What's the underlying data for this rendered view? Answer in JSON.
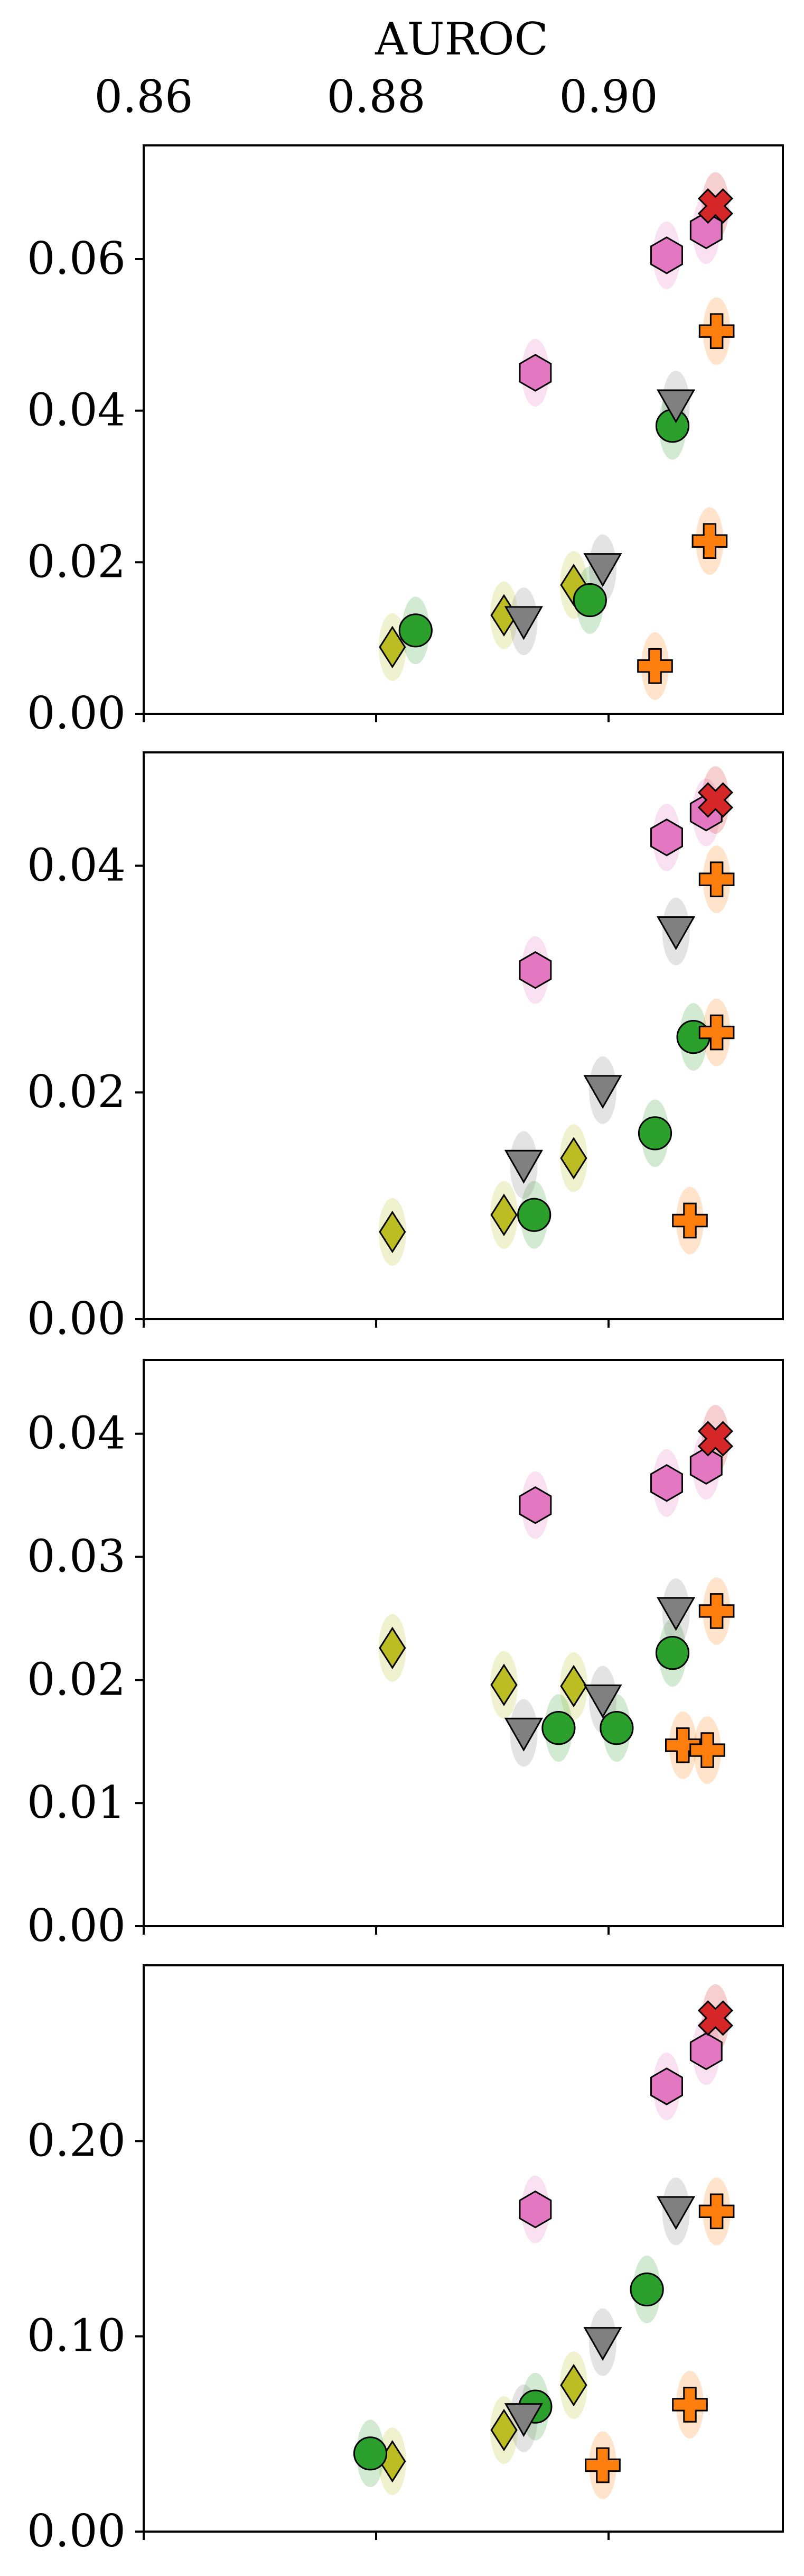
{
  "figure": {
    "top_axis_title": "AUROC",
    "x_ticks": [
      {
        "value": 0.86,
        "label": "0.86"
      },
      {
        "value": 0.88,
        "label": "0.88"
      },
      {
        "value": 0.9,
        "label": "0.90"
      }
    ]
  },
  "colors": {
    "diamond": "#bcbd22",
    "circle": "#2ca02c",
    "triangle": "#808080",
    "hexagon": "#e377c2",
    "plus": "#ff7f0e",
    "cross": "#d62728"
  },
  "chart_data": [
    {
      "type": "scatter",
      "xlim": [
        0.86,
        0.915
      ],
      "ylim": [
        0,
        0.075
      ],
      "y_ticks": [
        {
          "value": 0.0,
          "label": "0.00"
        },
        {
          "value": 0.02,
          "label": "0.02"
        },
        {
          "value": 0.04,
          "label": "0.04"
        },
        {
          "value": 0.06,
          "label": "0.06"
        }
      ],
      "series": [
        {
          "marker": "diamond",
          "points": [
            {
              "x": 0.8814,
              "y": 0.0088
            },
            {
              "x": 0.891,
              "y": 0.013
            },
            {
              "x": 0.897,
              "y": 0.017
            }
          ]
        },
        {
          "marker": "circle",
          "points": [
            {
              "x": 0.8834,
              "y": 0.011
            },
            {
              "x": 0.8984,
              "y": 0.015
            },
            {
              "x": 0.9055,
              "y": 0.038
            }
          ]
        },
        {
          "marker": "triangle",
          "points": [
            {
              "x": 0.8927,
              "y": 0.0122
            },
            {
              "x": 0.8995,
              "y": 0.0192
            },
            {
              "x": 0.9058,
              "y": 0.0408
            }
          ]
        },
        {
          "marker": "hexagon",
          "points": [
            {
              "x": 0.8937,
              "y": 0.045
            },
            {
              "x": 0.905,
              "y": 0.0605
            },
            {
              "x": 0.9084,
              "y": 0.0638
            }
          ]
        },
        {
          "marker": "plus",
          "points": [
            {
              "x": 0.904,
              "y": 0.0063
            },
            {
              "x": 0.9087,
              "y": 0.0228
            },
            {
              "x": 0.9093,
              "y": 0.0505
            }
          ]
        },
        {
          "marker": "cross",
          "points": [
            {
              "x": 0.9092,
              "y": 0.067
            }
          ]
        }
      ]
    },
    {
      "type": "scatter",
      "xlim": [
        0.86,
        0.915
      ],
      "ylim": [
        0,
        0.05
      ],
      "y_ticks": [
        {
          "value": 0.0,
          "label": "0.00"
        },
        {
          "value": 0.02,
          "label": "0.02"
        },
        {
          "value": 0.04,
          "label": "0.04"
        }
      ],
      "series": [
        {
          "marker": "diamond",
          "points": [
            {
              "x": 0.8814,
              "y": 0.0077
            },
            {
              "x": 0.891,
              "y": 0.0092
            },
            {
              "x": 0.897,
              "y": 0.0142
            }
          ]
        },
        {
          "marker": "circle",
          "points": [
            {
              "x": 0.8936,
              "y": 0.0092
            },
            {
              "x": 0.904,
              "y": 0.0164
            },
            {
              "x": 0.9073,
              "y": 0.0249
            }
          ]
        },
        {
          "marker": "triangle",
          "points": [
            {
              "x": 0.8927,
              "y": 0.0136
            },
            {
              "x": 0.8995,
              "y": 0.0202
            },
            {
              "x": 0.9058,
              "y": 0.0342
            }
          ]
        },
        {
          "marker": "hexagon",
          "points": [
            {
              "x": 0.8937,
              "y": 0.0308
            },
            {
              "x": 0.905,
              "y": 0.0425
            },
            {
              "x": 0.9084,
              "y": 0.0447
            }
          ]
        },
        {
          "marker": "plus",
          "points": [
            {
              "x": 0.907,
              "y": 0.0087
            },
            {
              "x": 0.9093,
              "y": 0.0253
            },
            {
              "x": 0.9093,
              "y": 0.0388
            }
          ]
        },
        {
          "marker": "cross",
          "points": [
            {
              "x": 0.9092,
              "y": 0.0458
            }
          ]
        }
      ]
    },
    {
      "type": "scatter",
      "xlim": [
        0.86,
        0.915
      ],
      "ylim": [
        0,
        0.046
      ],
      "y_ticks": [
        {
          "value": 0.0,
          "label": "0.00"
        },
        {
          "value": 0.01,
          "label": "0.01"
        },
        {
          "value": 0.02,
          "label": "0.02"
        },
        {
          "value": 0.03,
          "label": "0.03"
        },
        {
          "value": 0.04,
          "label": "0.04"
        }
      ],
      "series": [
        {
          "marker": "diamond",
          "points": [
            {
              "x": 0.8814,
              "y": 0.0226
            },
            {
              "x": 0.891,
              "y": 0.0196
            },
            {
              "x": 0.897,
              "y": 0.0195
            }
          ]
        },
        {
          "marker": "circle",
          "points": [
            {
              "x": 0.8957,
              "y": 0.0161
            },
            {
              "x": 0.9007,
              "y": 0.0161
            },
            {
              "x": 0.9055,
              "y": 0.0222
            }
          ]
        },
        {
          "marker": "triangle",
          "points": [
            {
              "x": 0.8927,
              "y": 0.0157
            },
            {
              "x": 0.8995,
              "y": 0.0184
            },
            {
              "x": 0.9058,
              "y": 0.0255
            }
          ]
        },
        {
          "marker": "hexagon",
          "points": [
            {
              "x": 0.8937,
              "y": 0.0342
            },
            {
              "x": 0.905,
              "y": 0.036
            },
            {
              "x": 0.9084,
              "y": 0.0374
            }
          ]
        },
        {
          "marker": "plus",
          "points": [
            {
              "x": 0.9064,
              "y": 0.0147
            },
            {
              "x": 0.9085,
              "y": 0.0143
            },
            {
              "x": 0.9093,
              "y": 0.0256
            }
          ]
        },
        {
          "marker": "cross",
          "points": [
            {
              "x": 0.9092,
              "y": 0.0396
            }
          ]
        }
      ]
    },
    {
      "type": "scatter",
      "xlim": [
        0.86,
        0.915
      ],
      "ylim": [
        0,
        0.29
      ],
      "y_ticks": [
        {
          "value": 0.0,
          "label": "0.00"
        },
        {
          "value": 0.1,
          "label": "0.10"
        },
        {
          "value": 0.2,
          "label": "0.20"
        }
      ],
      "series": [
        {
          "marker": "diamond",
          "points": [
            {
              "x": 0.8814,
              "y": 0.036
            },
            {
              "x": 0.891,
              "y": 0.052
            },
            {
              "x": 0.897,
              "y": 0.075
            }
          ]
        },
        {
          "marker": "circle",
          "points": [
            {
              "x": 0.8795,
              "y": 0.04
            },
            {
              "x": 0.8937,
              "y": 0.064
            },
            {
              "x": 0.9033,
              "y": 0.124
            }
          ]
        },
        {
          "marker": "triangle",
          "points": [
            {
              "x": 0.8927,
              "y": 0.058
            },
            {
              "x": 0.8995,
              "y": 0.097
            },
            {
              "x": 0.9058,
              "y": 0.164
            }
          ]
        },
        {
          "marker": "hexagon",
          "points": [
            {
              "x": 0.8937,
              "y": 0.165
            },
            {
              "x": 0.905,
              "y": 0.228
            },
            {
              "x": 0.9084,
              "y": 0.246
            }
          ]
        },
        {
          "marker": "plus",
          "points": [
            {
              "x": 0.8995,
              "y": 0.034
            },
            {
              "x": 0.907,
              "y": 0.065
            },
            {
              "x": 0.9093,
              "y": 0.164
            }
          ]
        },
        {
          "marker": "cross",
          "points": [
            {
              "x": 0.9092,
              "y": 0.263
            }
          ]
        }
      ]
    }
  ]
}
